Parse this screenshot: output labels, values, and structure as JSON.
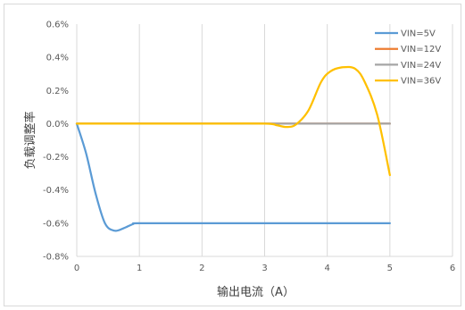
{
  "chart_data": {
    "type": "line",
    "title": "",
    "xlabel": "输出电流（A）",
    "ylabel": "负载调整率",
    "xlim": [
      0,
      6
    ],
    "ylim": [
      -0.8,
      0.6
    ],
    "x_ticks": [
      "0",
      "1",
      "2",
      "3",
      "4",
      "5",
      "6"
    ],
    "y_ticks": [
      "0.6%",
      "0.4%",
      "0.2%",
      "0.0%",
      "-0.2%",
      "-0.4%",
      "-0.6%",
      "-0.8%"
    ],
    "y_tick_values": [
      0.6,
      0.4,
      0.2,
      0.0,
      -0.2,
      -0.4,
      -0.6,
      -0.8
    ],
    "grid": "vertical",
    "legend_position": "top-right",
    "series": [
      {
        "name": "VIN=5V",
        "color": "#5b9bd5",
        "points": [
          [
            0,
            0.0
          ],
          [
            0.15,
            -0.18
          ],
          [
            0.3,
            -0.42
          ],
          [
            0.45,
            -0.6
          ],
          [
            0.6,
            -0.645
          ],
          [
            0.75,
            -0.63
          ],
          [
            0.9,
            -0.605
          ],
          [
            1.0,
            -0.6
          ],
          [
            2.0,
            -0.6
          ],
          [
            3.0,
            -0.6
          ],
          [
            4.0,
            -0.6
          ],
          [
            5.0,
            -0.6
          ]
        ]
      },
      {
        "name": "VIN=12V",
        "color": "#ed7d31",
        "points": [
          [
            0,
            0.0
          ],
          [
            1,
            0.0
          ],
          [
            2,
            0.0
          ],
          [
            3,
            0.0
          ],
          [
            4,
            0.0
          ],
          [
            5,
            0.0
          ]
        ]
      },
      {
        "name": "VIN=24V",
        "color": "#a5a5a5",
        "points": [
          [
            0,
            0.0
          ],
          [
            1,
            0.0
          ],
          [
            2,
            0.0
          ],
          [
            3,
            0.0
          ],
          [
            4,
            0.0
          ],
          [
            5,
            0.0
          ]
        ]
      },
      {
        "name": "VIN=36V",
        "color": "#ffc000",
        "points": [
          [
            0,
            0.0
          ],
          [
            1,
            0.0
          ],
          [
            2,
            0.0
          ],
          [
            3.0,
            0.0
          ],
          [
            3.2,
            -0.01
          ],
          [
            3.35,
            -0.02
          ],
          [
            3.5,
            -0.005
          ],
          [
            3.7,
            0.08
          ],
          [
            3.9,
            0.25
          ],
          [
            4.05,
            0.315
          ],
          [
            4.25,
            0.34
          ],
          [
            4.45,
            0.33
          ],
          [
            4.6,
            0.25
          ],
          [
            4.8,
            0.05
          ],
          [
            5.0,
            -0.31
          ]
        ]
      }
    ]
  }
}
